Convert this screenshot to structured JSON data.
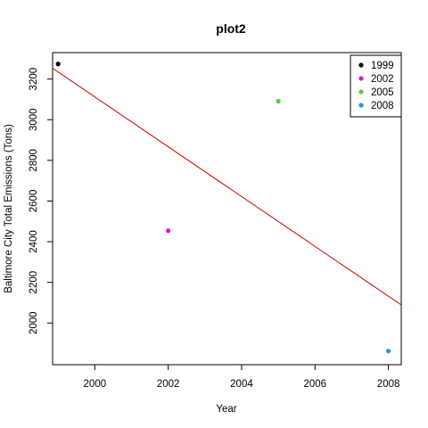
{
  "chart_data": {
    "type": "scatter",
    "title": "plot2",
    "xlabel": "Year",
    "ylabel": "Baltimore City Total Emissions (Tons)",
    "xlim": [
      1998.85,
      2008.35
    ],
    "ylim": [
      1795,
      3330
    ],
    "xticks": [
      2000,
      2002,
      2004,
      2006,
      2008
    ],
    "yticks": [
      2000,
      2200,
      2400,
      2600,
      2800,
      3000,
      3200
    ],
    "points": [
      {
        "x": 1999,
        "y": 3274,
        "label": "1999",
        "color": "#000000"
      },
      {
        "x": 2002,
        "y": 2454,
        "label": "2002",
        "color": "#cc22cc"
      },
      {
        "x": 2005,
        "y": 3091,
        "label": "2005",
        "color": "#55cc44"
      },
      {
        "x": 2008,
        "y": 1862,
        "label": "2008",
        "color": "#2299dd"
      }
    ],
    "trend_line": {
      "x": [
        1998.85,
        2008.35
      ],
      "y": [
        3253,
        2089
      ],
      "color": "#cc0000"
    },
    "legend": {
      "position": "top-right",
      "entries": [
        "1999",
        "2002",
        "2005",
        "2008"
      ]
    },
    "grid": false
  }
}
